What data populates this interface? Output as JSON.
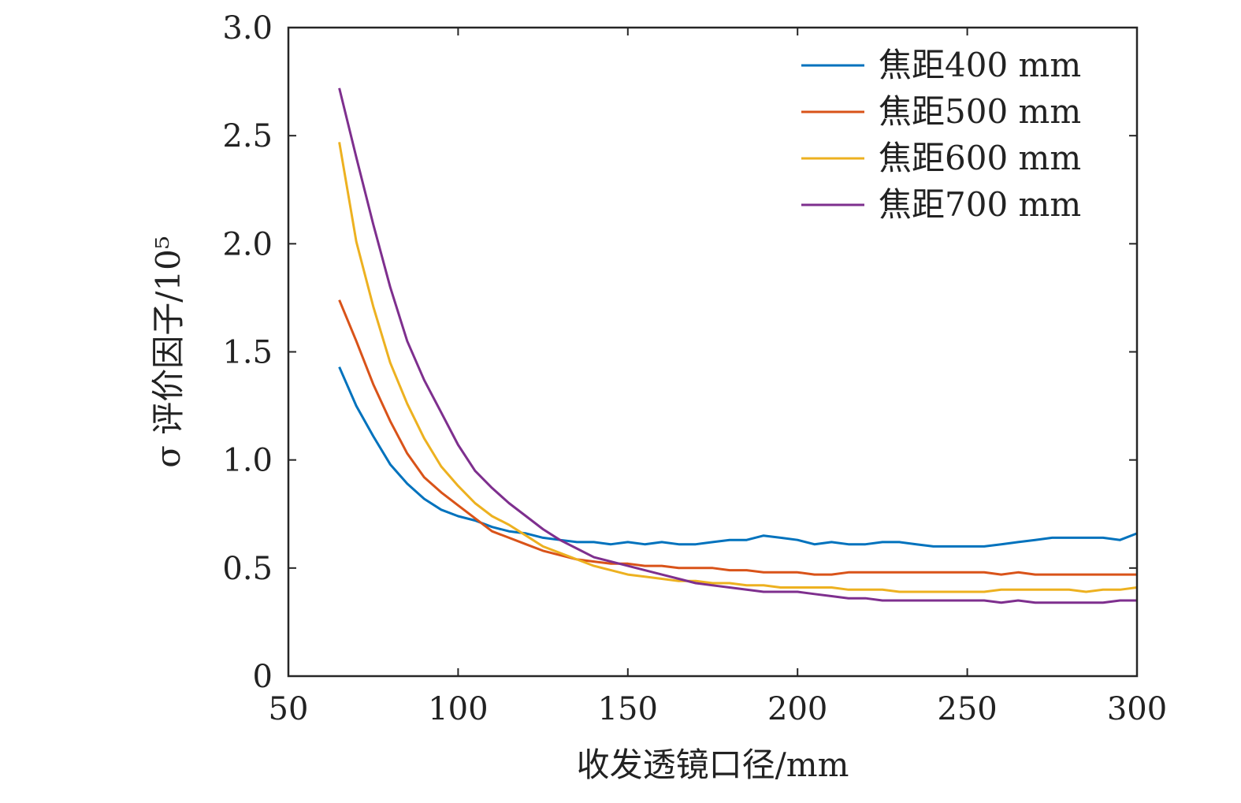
{
  "chart_data": {
    "type": "line",
    "xlabel": "收发透镜口径/mm",
    "ylabel": "σ 评价因子/10⁵",
    "xlim": [
      50,
      300
    ],
    "ylim": [
      0,
      3.0
    ],
    "xticks": [
      50,
      100,
      150,
      200,
      250,
      300
    ],
    "xtick_labels": [
      "50",
      "100",
      "150",
      "200",
      "250",
      "300"
    ],
    "yticks": [
      0,
      0.5,
      1.0,
      1.5,
      2.0,
      2.5,
      3.0
    ],
    "ytick_labels": [
      "0",
      "0.5",
      "1.0",
      "1.5",
      "2.0",
      "2.5",
      "3.0"
    ],
    "grid": false,
    "legend_position": "top-right",
    "x": [
      65,
      70,
      75,
      80,
      85,
      90,
      95,
      100,
      105,
      110,
      115,
      120,
      125,
      130,
      135,
      140,
      145,
      150,
      155,
      160,
      165,
      170,
      175,
      180,
      185,
      190,
      195,
      200,
      205,
      210,
      215,
      220,
      225,
      230,
      235,
      240,
      245,
      250,
      255,
      260,
      265,
      270,
      275,
      280,
      285,
      290,
      295,
      300
    ],
    "series": [
      {
        "name": "焦距400 mm",
        "color": "#0072BD",
        "values": [
          1.43,
          1.25,
          1.11,
          0.98,
          0.89,
          0.82,
          0.77,
          0.74,
          0.72,
          0.69,
          0.67,
          0.66,
          0.64,
          0.63,
          0.62,
          0.62,
          0.61,
          0.62,
          0.61,
          0.62,
          0.61,
          0.61,
          0.62,
          0.63,
          0.63,
          0.65,
          0.64,
          0.63,
          0.61,
          0.62,
          0.61,
          0.61,
          0.62,
          0.62,
          0.61,
          0.6,
          0.6,
          0.6,
          0.6,
          0.61,
          0.62,
          0.63,
          0.64,
          0.64,
          0.64,
          0.64,
          0.63,
          0.66
        ]
      },
      {
        "name": "焦距500 mm",
        "color": "#D95319",
        "values": [
          1.74,
          1.55,
          1.35,
          1.18,
          1.03,
          0.92,
          0.85,
          0.79,
          0.73,
          0.67,
          0.64,
          0.61,
          0.58,
          0.56,
          0.54,
          0.53,
          0.52,
          0.52,
          0.51,
          0.51,
          0.5,
          0.5,
          0.5,
          0.49,
          0.49,
          0.48,
          0.48,
          0.48,
          0.47,
          0.47,
          0.48,
          0.48,
          0.48,
          0.48,
          0.48,
          0.48,
          0.48,
          0.48,
          0.48,
          0.47,
          0.48,
          0.47,
          0.47,
          0.47,
          0.47,
          0.47,
          0.47,
          0.47
        ]
      },
      {
        "name": "焦距600 mm",
        "color": "#EDB120",
        "values": [
          2.47,
          2.01,
          1.71,
          1.45,
          1.26,
          1.1,
          0.97,
          0.88,
          0.8,
          0.74,
          0.7,
          0.65,
          0.6,
          0.57,
          0.54,
          0.51,
          0.49,
          0.47,
          0.46,
          0.45,
          0.44,
          0.44,
          0.43,
          0.43,
          0.42,
          0.42,
          0.41,
          0.41,
          0.41,
          0.41,
          0.4,
          0.4,
          0.4,
          0.39,
          0.39,
          0.39,
          0.39,
          0.39,
          0.39,
          0.4,
          0.4,
          0.4,
          0.4,
          0.4,
          0.39,
          0.4,
          0.4,
          0.41
        ]
      },
      {
        "name": "焦距700 mm",
        "color": "#7E2F8E",
        "values": [
          2.72,
          2.4,
          2.09,
          1.8,
          1.55,
          1.37,
          1.22,
          1.07,
          0.95,
          0.87,
          0.8,
          0.74,
          0.68,
          0.63,
          0.59,
          0.55,
          0.53,
          0.51,
          0.49,
          0.47,
          0.45,
          0.43,
          0.42,
          0.41,
          0.4,
          0.39,
          0.39,
          0.39,
          0.38,
          0.37,
          0.36,
          0.36,
          0.35,
          0.35,
          0.35,
          0.35,
          0.35,
          0.35,
          0.35,
          0.34,
          0.35,
          0.34,
          0.34,
          0.34,
          0.34,
          0.34,
          0.35,
          0.35
        ]
      }
    ]
  }
}
